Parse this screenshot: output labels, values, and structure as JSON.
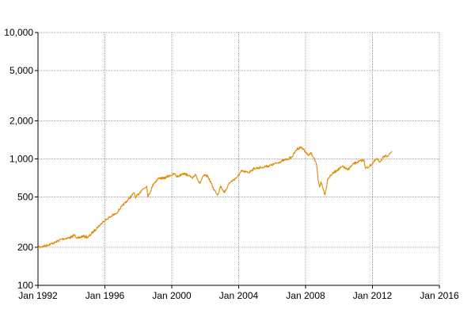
{
  "colors": {
    "background": "#ffffff",
    "grid": "#a0a0a0",
    "axis": "#000000",
    "series": "#e08a00"
  },
  "chart_data": {
    "type": "line",
    "title": "",
    "xlabel": "",
    "ylabel": "",
    "yscale": "log",
    "grid": true,
    "legend": "none",
    "xlim": [
      "1992-01-01",
      "2016-01-01"
    ],
    "ylim": [
      100,
      10000
    ],
    "x_ticks": [
      {
        "date": "1992-01-01",
        "label": "Jan 1992"
      },
      {
        "date": "1996-01-01",
        "label": "Jan 1996"
      },
      {
        "date": "2000-01-01",
        "label": "Jan 2000"
      },
      {
        "date": "2004-01-01",
        "label": "Jan 2004"
      },
      {
        "date": "2008-01-01",
        "label": "Jan 2008"
      },
      {
        "date": "2012-01-01",
        "label": "Jan 2012"
      },
      {
        "date": "2016-01-01",
        "label": "Jan 2016"
      }
    ],
    "y_ticks": [
      {
        "value": 100,
        "label": "100"
      },
      {
        "value": 200,
        "label": "200"
      },
      {
        "value": 500,
        "label": "500"
      },
      {
        "value": 1000,
        "label": "1,000"
      },
      {
        "value": 2000,
        "label": "2,000"
      },
      {
        "value": 5000,
        "label": "5,000"
      },
      {
        "value": 10000,
        "label": "10,000"
      }
    ],
    "series": [
      {
        "color": "#e08a00",
        "points": [
          [
            "1992-01-01",
            200
          ],
          [
            "1992-06-01",
            205
          ],
          [
            "1993-01-01",
            218
          ],
          [
            "1993-06-01",
            232
          ],
          [
            "1994-01-01",
            240
          ],
          [
            "1994-03-01",
            250
          ],
          [
            "1994-06-01",
            235
          ],
          [
            "1994-09-01",
            245
          ],
          [
            "1995-01-01",
            240
          ],
          [
            "1995-06-01",
            275
          ],
          [
            "1995-12-01",
            320
          ],
          [
            "1996-06-01",
            355
          ],
          [
            "1996-09-01",
            370
          ],
          [
            "1997-01-01",
            420
          ],
          [
            "1997-06-01",
            480
          ],
          [
            "1997-10-01",
            540
          ],
          [
            "1997-11-01",
            490
          ],
          [
            "1998-03-01",
            560
          ],
          [
            "1998-07-01",
            610
          ],
          [
            "1998-08-01",
            500
          ],
          [
            "1998-12-01",
            640
          ],
          [
            "1999-04-01",
            710
          ],
          [
            "1999-07-01",
            700
          ],
          [
            "1999-12-01",
            740
          ],
          [
            "2000-03-01",
            760
          ],
          [
            "2000-05-01",
            720
          ],
          [
            "2000-09-01",
            770
          ],
          [
            "2001-01-01",
            740
          ],
          [
            "2001-04-01",
            700
          ],
          [
            "2001-06-01",
            760
          ],
          [
            "2001-09-01",
            640
          ],
          [
            "2001-12-01",
            740
          ],
          [
            "2002-03-01",
            730
          ],
          [
            "2002-07-01",
            580
          ],
          [
            "2002-10-01",
            520
          ],
          [
            "2002-12-01",
            610
          ],
          [
            "2003-03-01",
            540
          ],
          [
            "2003-06-01",
            640
          ],
          [
            "2003-12-01",
            720
          ],
          [
            "2004-03-01",
            800
          ],
          [
            "2004-08-01",
            780
          ],
          [
            "2004-12-01",
            840
          ],
          [
            "2005-06-01",
            860
          ],
          [
            "2005-12-01",
            890
          ],
          [
            "2006-06-01",
            940
          ],
          [
            "2006-12-01",
            1000
          ],
          [
            "2007-03-01",
            1030
          ],
          [
            "2007-07-01",
            1200
          ],
          [
            "2007-10-01",
            1240
          ],
          [
            "2008-01-01",
            1130
          ],
          [
            "2008-03-01",
            1060
          ],
          [
            "2008-05-01",
            1110
          ],
          [
            "2008-07-01",
            1020
          ],
          [
            "2008-09-01",
            880
          ],
          [
            "2008-10-01",
            680
          ],
          [
            "2008-11-01",
            600
          ],
          [
            "2008-12-01",
            660
          ],
          [
            "2009-02-01",
            560
          ],
          [
            "2009-03-01",
            520
          ],
          [
            "2009-05-01",
            700
          ],
          [
            "2009-08-01",
            760
          ],
          [
            "2009-12-01",
            820
          ],
          [
            "2010-04-01",
            870
          ],
          [
            "2010-07-01",
            820
          ],
          [
            "2010-12-01",
            920
          ],
          [
            "2011-04-01",
            960
          ],
          [
            "2011-07-01",
            980
          ],
          [
            "2011-08-01",
            840
          ],
          [
            "2011-10-01",
            860
          ],
          [
            "2012-01-01",
            920
          ],
          [
            "2012-04-01",
            1000
          ],
          [
            "2012-06-01",
            950
          ],
          [
            "2012-09-01",
            1030
          ],
          [
            "2013-01-01",
            1080
          ],
          [
            "2013-03-01",
            1150
          ]
        ]
      }
    ]
  }
}
